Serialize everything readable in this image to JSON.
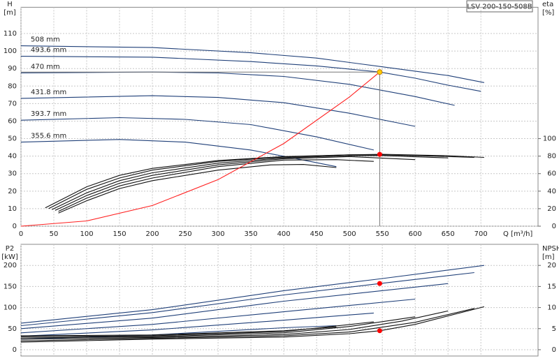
{
  "title": "LSV 200-150-508B",
  "chart_data": [
    {
      "type": "line",
      "x_label": "Q [m³/h]",
      "y_label": "H",
      "y_unit": "[m]",
      "y2_label": "eta",
      "y2_unit": "[%]",
      "xlim": [
        0,
        787
      ],
      "ylim": [
        0,
        125
      ],
      "y2lim": [
        0,
        250
      ],
      "xticks": [
        0,
        50,
        100,
        150,
        200,
        250,
        300,
        350,
        400,
        450,
        500,
        550,
        600,
        650,
        700
      ],
      "yticks": [
        0,
        10,
        20,
        30,
        40,
        50,
        60,
        70,
        80,
        90,
        100,
        110
      ],
      "y2ticks": [
        0,
        20,
        40,
        60,
        80,
        100
      ],
      "grid": true,
      "series": [
        {
          "name": "508 mm",
          "color": "#1f3f78",
          "x": [
            0,
            200,
            350,
            450,
            550,
            650,
            705
          ],
          "values": [
            103,
            102,
            99,
            96,
            91,
            86,
            82
          ]
        },
        {
          "name": "493.6 mm",
          "color": "#1f3f78",
          "x": [
            0,
            200,
            350,
            450,
            546,
            600,
            650,
            700
          ],
          "values": [
            97,
            96.5,
            94,
            91.5,
            88,
            84.5,
            80.5,
            77
          ]
        },
        {
          "name": "470 mm",
          "color": "#1f3f78",
          "x": [
            0,
            200,
            300,
            400,
            500,
            600,
            660
          ],
          "values": [
            87.5,
            88,
            87.5,
            85.5,
            81,
            74,
            69
          ]
        },
        {
          "name": "431.8 mm",
          "color": "#1f3f78",
          "x": [
            0,
            200,
            300,
            400,
            500,
            600
          ],
          "values": [
            73,
            74.5,
            73.5,
            70.5,
            64.5,
            57
          ]
        },
        {
          "name": "393.7 mm",
          "color": "#1f3f78",
          "x": [
            0,
            150,
            250,
            350,
            450,
            537
          ],
          "values": [
            60.5,
            62,
            61,
            58,
            51,
            43.5
          ]
        },
        {
          "name": "355.6 mm",
          "color": "#1f3f78",
          "x": [
            0,
            150,
            250,
            350,
            420,
            480
          ],
          "values": [
            48,
            49.5,
            48,
            43.5,
            38.5,
            34
          ]
        },
        {
          "color": "#111111",
          "axis": "y2",
          "x": [
            37,
            100,
            150,
            200,
            300,
            400,
            500,
            550,
            650,
            705
          ],
          "values": [
            21,
            45,
            58,
            66,
            75,
            79.5,
            81.5,
            82,
            80.5,
            78.5
          ]
        },
        {
          "color": "#111111",
          "axis": "y2",
          "x": [
            42,
            100,
            150,
            200,
            300,
            400,
            500,
            550,
            650,
            690
          ],
          "values": [
            20,
            42,
            55,
            64,
            74,
            79,
            81.5,
            81.5,
            79.5,
            78.5
          ]
        },
        {
          "color": "#111111",
          "axis": "y2",
          "x": [
            47,
            100,
            150,
            200,
            300,
            400,
            500,
            550,
            650
          ],
          "values": [
            19,
            38,
            52,
            61,
            72,
            78,
            80.5,
            80.5,
            78
          ]
        },
        {
          "color": "#111111",
          "axis": "y2",
          "x": [
            52,
            100,
            150,
            200,
            300,
            400,
            500,
            600
          ],
          "values": [
            18,
            35,
            49,
            58,
            70,
            77,
            79.5,
            76
          ]
        },
        {
          "color": "#111111",
          "axis": "y2",
          "x": [
            57,
            100,
            150,
            200,
            300,
            400,
            480,
            537
          ],
          "values": [
            17,
            32,
            46,
            55,
            68,
            75.5,
            76,
            74
          ]
        },
        {
          "color": "#111111",
          "axis": "y2",
          "x": [
            57,
            100,
            150,
            200,
            300,
            380,
            430,
            480
          ],
          "values": [
            15,
            29,
            43,
            52,
            64,
            70,
            70.5,
            67
          ]
        },
        {
          "color": "#ff2020",
          "x": [
            0,
            100,
            200,
            300,
            400,
            500,
            546
          ],
          "values": [
            0,
            3,
            11.8,
            26.6,
            47.2,
            73.8,
            88
          ]
        },
        {
          "color": "#ffcc00",
          "marker": true,
          "guides": true,
          "x": [
            546
          ],
          "values": [
            88
          ]
        },
        {
          "color": "#ff0000",
          "marker": true,
          "axis": "y2",
          "x": [
            546
          ],
          "values": [
            82
          ]
        }
      ]
    },
    {
      "type": "line",
      "y_label": "P2",
      "y_unit": "[kW]",
      "y2_label": "NPSH",
      "y2_unit": "[m]",
      "xlim": [
        0,
        787
      ],
      "ylim": [
        -15,
        250
      ],
      "y2lim": [
        -1.5,
        25
      ],
      "xticks": [
        0,
        50,
        100,
        150,
        200,
        250,
        300,
        350,
        400,
        450,
        500,
        550,
        600,
        650,
        700
      ],
      "yticks": [
        0,
        50,
        100,
        150,
        200
      ],
      "y2ticks": [
        0,
        5,
        10,
        15,
        20
      ],
      "grid": true,
      "series": [
        {
          "color": "#1f3f78",
          "x": [
            0,
            200,
            400,
            546,
            705
          ],
          "values": [
            63,
            95,
            140,
            168,
            200
          ]
        },
        {
          "color": "#1f3f78",
          "x": [
            0,
            200,
            400,
            546,
            690
          ],
          "values": [
            57,
            88,
            130,
            157,
            183
          ]
        },
        {
          "color": "#1f3f78",
          "x": [
            0,
            200,
            400,
            650
          ],
          "values": [
            50,
            75,
            115,
            157
          ]
        },
        {
          "color": "#1f3f78",
          "x": [
            0,
            200,
            400,
            600
          ],
          "values": [
            40,
            60,
            90,
            120
          ]
        },
        {
          "color": "#1f3f78",
          "x": [
            0,
            200,
            400,
            537
          ],
          "values": [
            32,
            47,
            70,
            87
          ]
        },
        {
          "color": "#1f3f78",
          "x": [
            0,
            200,
            400,
            480
          ],
          "values": [
            25,
            35,
            52,
            57
          ]
        },
        {
          "color": "#111111",
          "axis": "y2",
          "x": [
            0,
            200,
            400,
            500,
            546,
            600,
            705
          ],
          "values": [
            1.8,
            2.5,
            3,
            3.8,
            4.5,
            6,
            10.2
          ]
        },
        {
          "color": "#111111",
          "axis": "y2",
          "x": [
            0,
            200,
            400,
            500,
            600,
            690
          ],
          "values": [
            2.1,
            2.7,
            3.3,
            4.2,
            6.5,
            9.8
          ]
        },
        {
          "color": "#111111",
          "axis": "y2",
          "x": [
            0,
            200,
            400,
            500,
            580,
            650
          ],
          "values": [
            2.5,
            2.9,
            3.6,
            4.8,
            6.8,
            9.2
          ]
        },
        {
          "color": "#111111",
          "axis": "y2",
          "x": [
            0,
            200,
            400,
            500,
            600
          ],
          "values": [
            2.8,
            3.1,
            4,
            5.5,
            7.8
          ]
        },
        {
          "color": "#111111",
          "axis": "y2",
          "x": [
            0,
            200,
            400,
            537
          ],
          "values": [
            3.1,
            3.3,
            4.3,
            6.6
          ]
        },
        {
          "color": "#111111",
          "axis": "y2",
          "x": [
            0,
            200,
            400,
            480
          ],
          "values": [
            3.3,
            3.5,
            4.5,
            5.4
          ]
        },
        {
          "color": "#ff0000",
          "marker": true,
          "x": [
            546
          ],
          "values": [
            157
          ]
        },
        {
          "color": "#ff0000",
          "marker": true,
          "axis": "y2",
          "x": [
            546
          ],
          "values": [
            4.5
          ]
        }
      ]
    }
  ]
}
